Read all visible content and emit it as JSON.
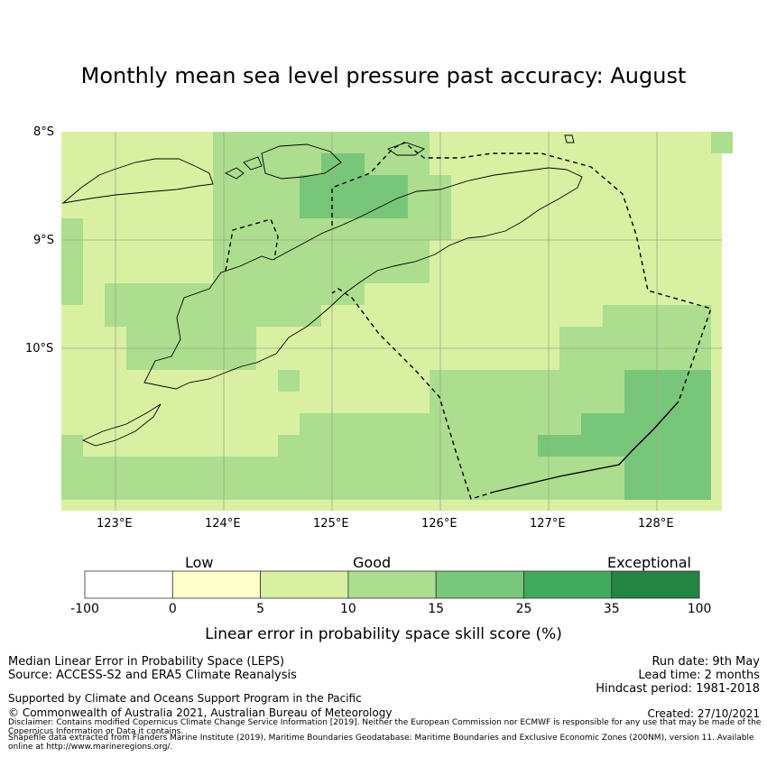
{
  "title": "Monthly mean sea level pressure past accuracy: August",
  "map": {
    "lat_ticks": [
      "8°S",
      "9°S",
      "10°S"
    ],
    "lon_ticks": [
      "123°E",
      "124°E",
      "125°E",
      "126°E",
      "127°E",
      "128°E"
    ],
    "extent": {
      "lon": [
        122.5,
        128.6
      ],
      "lat": [
        -8.0,
        -11.5
      ]
    },
    "grid_resolution_deg": 0.2,
    "palette": {
      "c0": "#ffffcc",
      "c5": "#d9f0a3",
      "c10": "#addd8e",
      "c15": "#78c679"
    },
    "border_color": "#000000",
    "gridline_color": "#bdbdbd"
  },
  "colorbar": {
    "words": [
      "Low",
      "Good",
      "Exceptional"
    ],
    "boundaries": [
      "-100",
      "0",
      "5",
      "10",
      "15",
      "25",
      "35",
      "100"
    ],
    "colors": [
      "#ffffff",
      "#ffffcc",
      "#d9f0a3",
      "#addd8e",
      "#78c679",
      "#41ab5d",
      "#238443"
    ],
    "label": "Linear error in probability space skill score (%)"
  },
  "footer": {
    "method": "Median Linear Error in Probability Space (LEPS)",
    "source": "Source: ACCESS-S2 and ERA5 Climate Reanalysis",
    "run_date": "Run date: 9th May",
    "lead_time": "Lead time: 2 months",
    "hindcast": "Hindcast period: 1981-2018",
    "support": "Supported by Climate and Oceans Support Program in the Pacific",
    "copyright": "© Commonwealth of Australia 2021, Australian Bureau of Meteorology",
    "created": "Created: 27/10/2021",
    "disclaimer": "Disclaimer: Contains modified Copernicus Climate Change Service Information [2019]. Neither the European Commission nor ECMWF is responsible for any use that may be made of the Copernicus Information or Data it contains.",
    "shapefile": "Shapefile data extracted from Flanders Marine Institute (2019), Maritime Boundaries Geodatabase: Maritime Boundaries and Exclusive Economic Zones (200NM), version 11. Available online at http://www.marineregions.org/."
  }
}
